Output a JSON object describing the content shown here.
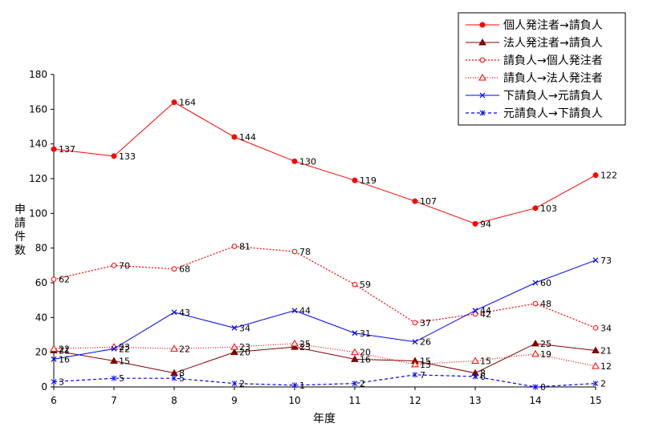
{
  "chart_data": {
    "type": "line",
    "xlabel": "年度",
    "ylabel": "申請件数",
    "x": [
      6,
      7,
      8,
      9,
      10,
      11,
      12,
      13,
      14,
      15
    ],
    "ylim": [
      0,
      180
    ],
    "yticks": [
      0,
      20,
      40,
      60,
      80,
      100,
      120,
      140,
      160,
      180
    ],
    "grid": false,
    "legend_position": "top-right",
    "series": [
      {
        "name": "個人発注者→請負人",
        "values": [
          137,
          133,
          164,
          144,
          130,
          119,
          107,
          94,
          103,
          122
        ],
        "color": "#ff0000",
        "dash": "solid",
        "marker": "dot"
      },
      {
        "name": "法人発注者→請負人",
        "values": [
          21,
          15,
          8,
          20,
          23,
          16,
          15,
          8,
          25,
          21
        ],
        "color": "#800000",
        "dash": "solid",
        "marker": "triangle"
      },
      {
        "name": "請負人→個人発注者",
        "values": [
          62,
          70,
          68,
          81,
          78,
          59,
          37,
          42,
          48,
          34
        ],
        "color": "#ff0000",
        "dash": "dotted",
        "marker": "circle-open"
      },
      {
        "name": "請負人→法人発注者",
        "values": [
          22,
          23,
          22,
          23,
          25,
          20,
          13,
          15,
          19,
          12
        ],
        "color": "#ff0000",
        "dash": "finedot",
        "marker": "triangle-open"
      },
      {
        "name": "下請負人→元請負人",
        "values": [
          16,
          22,
          43,
          34,
          44,
          31,
          26,
          44,
          60,
          73
        ],
        "color": "#0000ff",
        "dash": "solid",
        "marker": "x"
      },
      {
        "name": "元請負人→下請負人",
        "values": [
          3,
          5,
          5,
          2,
          1,
          2,
          7,
          6,
          0,
          2
        ],
        "color": "#0000ff",
        "dash": "dashed",
        "marker": "star"
      }
    ]
  }
}
